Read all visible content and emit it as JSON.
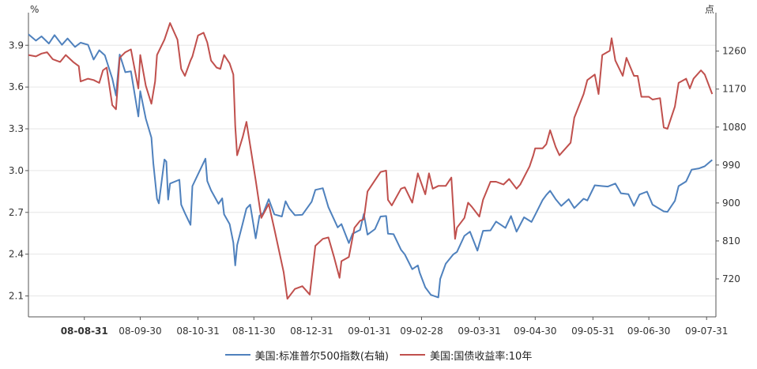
{
  "chart_data": {
    "type": "line",
    "left_axis": {
      "unit": "%",
      "ylim": [
        1.95,
        4.1
      ],
      "ticks": [
        "2.1",
        "2.4",
        "2.7",
        "3.0",
        "3.3",
        "3.6",
        "3.9"
      ]
    },
    "right_axis": {
      "unit": "点",
      "ylim": [
        630,
        1340
      ],
      "ticks": [
        "720",
        "810",
        "900",
        "990",
        "1080",
        "1170",
        "1260"
      ]
    },
    "x_ticks": [
      "08-08-31",
      "08-09-30",
      "08-10-31",
      "08-11-30",
      "08-12-31",
      "09-01-31",
      "09-02-28",
      "09-03-31",
      "09-04-30",
      "09-05-31",
      "09-06-30",
      "09-07-31"
    ],
    "x_range": [
      "2008-08-01",
      "2009-08-05"
    ],
    "grid": "horizontal",
    "legend_position": "bottom",
    "series": [
      {
        "name": "美国:标准普尔500指数(右轴)",
        "axis": "right",
        "color": "#4f81bd",
        "points": [
          [
            "2008-08-01",
            1300
          ],
          [
            "2008-08-05",
            1285
          ],
          [
            "2008-08-08",
            1295
          ],
          [
            "2008-08-12",
            1278
          ],
          [
            "2008-08-15",
            1298
          ],
          [
            "2008-08-19",
            1275
          ],
          [
            "2008-08-22",
            1290
          ],
          [
            "2008-08-26",
            1270
          ],
          [
            "2008-08-29",
            1280
          ],
          [
            "2008-09-02",
            1275
          ],
          [
            "2008-09-05",
            1240
          ],
          [
            "2008-09-08",
            1262
          ],
          [
            "2008-09-11",
            1250
          ],
          [
            "2008-09-15",
            1195
          ],
          [
            "2008-09-17",
            1155
          ],
          [
            "2008-09-19",
            1252
          ],
          [
            "2008-09-22",
            1210
          ],
          [
            "2008-09-25",
            1212
          ],
          [
            "2008-09-29",
            1105
          ],
          [
            "2008-09-30",
            1165
          ],
          [
            "2008-10-03",
            1100
          ],
          [
            "2008-10-06",
            1055
          ],
          [
            "2008-10-07",
            995
          ],
          [
            "2008-10-09",
            910
          ],
          [
            "2008-10-10",
            899
          ],
          [
            "2008-10-13",
            1003
          ],
          [
            "2008-10-14",
            998
          ],
          [
            "2008-10-15",
            908
          ],
          [
            "2008-10-16",
            946
          ],
          [
            "2008-10-21",
            955
          ],
          [
            "2008-10-22",
            896
          ],
          [
            "2008-10-24",
            876
          ],
          [
            "2008-10-27",
            848
          ],
          [
            "2008-10-28",
            940
          ],
          [
            "2008-10-31",
            968
          ],
          [
            "2008-11-04",
            1005
          ],
          [
            "2008-11-05",
            952
          ],
          [
            "2008-11-07",
            930
          ],
          [
            "2008-11-11",
            898
          ],
          [
            "2008-11-13",
            911
          ],
          [
            "2008-11-14",
            873
          ],
          [
            "2008-11-17",
            850
          ],
          [
            "2008-11-19",
            806
          ],
          [
            "2008-11-20",
            752
          ],
          [
            "2008-11-21",
            800
          ],
          [
            "2008-11-24",
            851
          ],
          [
            "2008-11-26",
            887
          ],
          [
            "2008-11-28",
            896
          ],
          [
            "2008-12-01",
            816
          ],
          [
            "2008-12-03",
            870
          ],
          [
            "2008-12-05",
            876
          ],
          [
            "2008-12-08",
            909
          ],
          [
            "2008-12-11",
            873
          ],
          [
            "2008-12-15",
            868
          ],
          [
            "2008-12-17",
            904
          ],
          [
            "2008-12-19",
            887
          ],
          [
            "2008-12-22",
            871
          ],
          [
            "2008-12-26",
            872
          ],
          [
            "2008-12-31",
            903
          ],
          [
            "2009-01-02",
            931
          ],
          [
            "2009-01-06",
            935
          ],
          [
            "2009-01-09",
            890
          ],
          [
            "2009-01-14",
            842
          ],
          [
            "2009-01-16",
            850
          ],
          [
            "2009-01-20",
            805
          ],
          [
            "2009-01-22",
            827
          ],
          [
            "2009-01-26",
            836
          ],
          [
            "2009-01-28",
            874
          ],
          [
            "2009-01-30",
            825
          ],
          [
            "2009-02-03",
            838
          ],
          [
            "2009-02-06",
            868
          ],
          [
            "2009-02-09",
            869
          ],
          [
            "2009-02-10",
            827
          ],
          [
            "2009-02-13",
            826
          ],
          [
            "2009-02-17",
            789
          ],
          [
            "2009-02-19",
            778
          ],
          [
            "2009-02-23",
            743
          ],
          [
            "2009-02-26",
            752
          ],
          [
            "2009-02-27",
            735
          ],
          [
            "2009-03-02",
            700
          ],
          [
            "2009-03-05",
            682
          ],
          [
            "2009-03-09",
            676
          ],
          [
            "2009-03-10",
            720
          ],
          [
            "2009-03-13",
            756
          ],
          [
            "2009-03-17",
            778
          ],
          [
            "2009-03-19",
            784
          ],
          [
            "2009-03-23",
            822
          ],
          [
            "2009-03-26",
            832
          ],
          [
            "2009-03-30",
            787
          ],
          [
            "2009-04-02",
            834
          ],
          [
            "2009-04-06",
            835
          ],
          [
            "2009-04-09",
            856
          ],
          [
            "2009-04-14",
            841
          ],
          [
            "2009-04-17",
            869
          ],
          [
            "2009-04-20",
            832
          ],
          [
            "2009-04-24",
            866
          ],
          [
            "2009-04-28",
            855
          ],
          [
            "2009-04-30",
            872
          ],
          [
            "2009-05-04",
            907
          ],
          [
            "2009-05-06",
            919
          ],
          [
            "2009-05-08",
            929
          ],
          [
            "2009-05-11",
            909
          ],
          [
            "2009-05-14",
            893
          ],
          [
            "2009-05-18",
            909
          ],
          [
            "2009-05-21",
            888
          ],
          [
            "2009-05-26",
            910
          ],
          [
            "2009-05-28",
            906
          ],
          [
            "2009-06-01",
            942
          ],
          [
            "2009-06-05",
            940
          ],
          [
            "2009-06-08",
            939
          ],
          [
            "2009-06-12",
            946
          ],
          [
            "2009-06-15",
            923
          ],
          [
            "2009-06-19",
            921
          ],
          [
            "2009-06-22",
            893
          ],
          [
            "2009-06-25",
            920
          ],
          [
            "2009-06-29",
            927
          ],
          [
            "2009-07-02",
            896
          ],
          [
            "2009-07-08",
            880
          ],
          [
            "2009-07-10",
            879
          ],
          [
            "2009-07-14",
            905
          ],
          [
            "2009-07-16",
            940
          ],
          [
            "2009-07-20",
            951
          ],
          [
            "2009-07-23",
            979
          ],
          [
            "2009-07-27",
            982
          ],
          [
            "2009-07-30",
            987
          ],
          [
            "2009-08-03",
            1002
          ]
        ]
      },
      {
        "name": "美国:国债收益率:10年",
        "axis": "left",
        "color": "#c0504d",
        "points": [
          [
            "2008-08-01",
            3.83
          ],
          [
            "2008-08-05",
            3.82
          ],
          [
            "2008-08-08",
            3.84
          ],
          [
            "2008-08-11",
            3.85
          ],
          [
            "2008-08-14",
            3.8
          ],
          [
            "2008-08-18",
            3.78
          ],
          [
            "2008-08-21",
            3.83
          ],
          [
            "2008-08-25",
            3.78
          ],
          [
            "2008-08-28",
            3.75
          ],
          [
            "2008-08-29",
            3.64
          ],
          [
            "2008-09-02",
            3.66
          ],
          [
            "2008-09-05",
            3.65
          ],
          [
            "2008-09-08",
            3.63
          ],
          [
            "2008-09-10",
            3.72
          ],
          [
            "2008-09-12",
            3.74
          ],
          [
            "2008-09-15",
            3.47
          ],
          [
            "2008-09-17",
            3.44
          ],
          [
            "2008-09-19",
            3.81
          ],
          [
            "2008-09-22",
            3.85
          ],
          [
            "2008-09-25",
            3.87
          ],
          [
            "2008-09-29",
            3.59
          ],
          [
            "2008-09-30",
            3.83
          ],
          [
            "2008-10-03",
            3.61
          ],
          [
            "2008-10-06",
            3.48
          ],
          [
            "2008-10-08",
            3.64
          ],
          [
            "2008-10-09",
            3.83
          ],
          [
            "2008-10-13",
            3.94
          ],
          [
            "2008-10-16",
            4.06
          ],
          [
            "2008-10-20",
            3.94
          ],
          [
            "2008-10-22",
            3.73
          ],
          [
            "2008-10-24",
            3.68
          ],
          [
            "2008-10-27",
            3.79
          ],
          [
            "2008-10-28",
            3.82
          ],
          [
            "2008-10-31",
            3.97
          ],
          [
            "2008-11-03",
            3.99
          ],
          [
            "2008-11-05",
            3.92
          ],
          [
            "2008-11-07",
            3.79
          ],
          [
            "2008-11-10",
            3.74
          ],
          [
            "2008-11-12",
            3.73
          ],
          [
            "2008-11-14",
            3.83
          ],
          [
            "2008-11-17",
            3.77
          ],
          [
            "2008-11-19",
            3.69
          ],
          [
            "2008-11-20",
            3.32
          ],
          [
            "2008-11-21",
            3.11
          ],
          [
            "2008-11-24",
            3.24
          ],
          [
            "2008-11-26",
            3.35
          ],
          [
            "2008-12-01",
            2.93
          ],
          [
            "2008-12-04",
            2.66
          ],
          [
            "2008-12-08",
            2.76
          ],
          [
            "2008-12-11",
            2.58
          ],
          [
            "2008-12-16",
            2.27
          ],
          [
            "2008-12-18",
            2.08
          ],
          [
            "2008-12-22",
            2.15
          ],
          [
            "2008-12-26",
            2.17
          ],
          [
            "2008-12-30",
            2.11
          ],
          [
            "2009-01-02",
            2.46
          ],
          [
            "2009-01-06",
            2.51
          ],
          [
            "2009-01-09",
            2.52
          ],
          [
            "2009-01-12",
            2.38
          ],
          [
            "2009-01-15",
            2.23
          ],
          [
            "2009-01-16",
            2.35
          ],
          [
            "2009-01-20",
            2.38
          ],
          [
            "2009-01-23",
            2.59
          ],
          [
            "2009-01-26",
            2.64
          ],
          [
            "2009-01-28",
            2.65
          ],
          [
            "2009-01-30",
            2.85
          ],
          [
            "2009-02-03",
            2.93
          ],
          [
            "2009-02-06",
            2.99
          ],
          [
            "2009-02-09",
            3.0
          ],
          [
            "2009-02-10",
            2.79
          ],
          [
            "2009-02-12",
            2.75
          ],
          [
            "2009-02-17",
            2.87
          ],
          [
            "2009-02-19",
            2.88
          ],
          [
            "2009-02-23",
            2.77
          ],
          [
            "2009-02-26",
            2.98
          ],
          [
            "2009-03-02",
            2.83
          ],
          [
            "2009-03-04",
            2.98
          ],
          [
            "2009-03-06",
            2.87
          ],
          [
            "2009-03-09",
            2.89
          ],
          [
            "2009-03-11",
            2.89
          ],
          [
            "2009-03-13",
            2.89
          ],
          [
            "2009-03-16",
            2.95
          ],
          [
            "2009-03-18",
            2.51
          ],
          [
            "2009-03-19",
            2.59
          ],
          [
            "2009-03-23",
            2.66
          ],
          [
            "2009-03-25",
            2.77
          ],
          [
            "2009-03-27",
            2.74
          ],
          [
            "2009-03-31",
            2.67
          ],
          [
            "2009-04-02",
            2.79
          ],
          [
            "2009-04-06",
            2.92
          ],
          [
            "2009-04-09",
            2.92
          ],
          [
            "2009-04-13",
            2.9
          ],
          [
            "2009-04-16",
            2.94
          ],
          [
            "2009-04-20",
            2.87
          ],
          [
            "2009-04-22",
            2.9
          ],
          [
            "2009-04-27",
            3.03
          ],
          [
            "2009-04-29",
            3.11
          ],
          [
            "2009-04-30",
            3.16
          ],
          [
            "2009-05-04",
            3.16
          ],
          [
            "2009-05-06",
            3.19
          ],
          [
            "2009-05-08",
            3.29
          ],
          [
            "2009-05-11",
            3.17
          ],
          [
            "2009-05-13",
            3.11
          ],
          [
            "2009-05-15",
            3.14
          ],
          [
            "2009-05-19",
            3.2
          ],
          [
            "2009-05-21",
            3.38
          ],
          [
            "2009-05-26",
            3.55
          ],
          [
            "2009-05-28",
            3.65
          ],
          [
            "2009-06-01",
            3.69
          ],
          [
            "2009-06-03",
            3.55
          ],
          [
            "2009-06-05",
            3.83
          ],
          [
            "2009-06-09",
            3.86
          ],
          [
            "2009-06-10",
            3.95
          ],
          [
            "2009-06-12",
            3.79
          ],
          [
            "2009-06-16",
            3.68
          ],
          [
            "2009-06-18",
            3.81
          ],
          [
            "2009-06-22",
            3.68
          ],
          [
            "2009-06-24",
            3.68
          ],
          [
            "2009-06-26",
            3.53
          ],
          [
            "2009-06-30",
            3.53
          ],
          [
            "2009-07-02",
            3.51
          ],
          [
            "2009-07-06",
            3.52
          ],
          [
            "2009-07-08",
            3.31
          ],
          [
            "2009-07-10",
            3.3
          ],
          [
            "2009-07-14",
            3.46
          ],
          [
            "2009-07-16",
            3.63
          ],
          [
            "2009-07-20",
            3.66
          ],
          [
            "2009-07-22",
            3.59
          ],
          [
            "2009-07-24",
            3.66
          ],
          [
            "2009-07-28",
            3.72
          ],
          [
            "2009-07-30",
            3.69
          ],
          [
            "2009-08-03",
            3.55
          ]
        ]
      }
    ]
  }
}
